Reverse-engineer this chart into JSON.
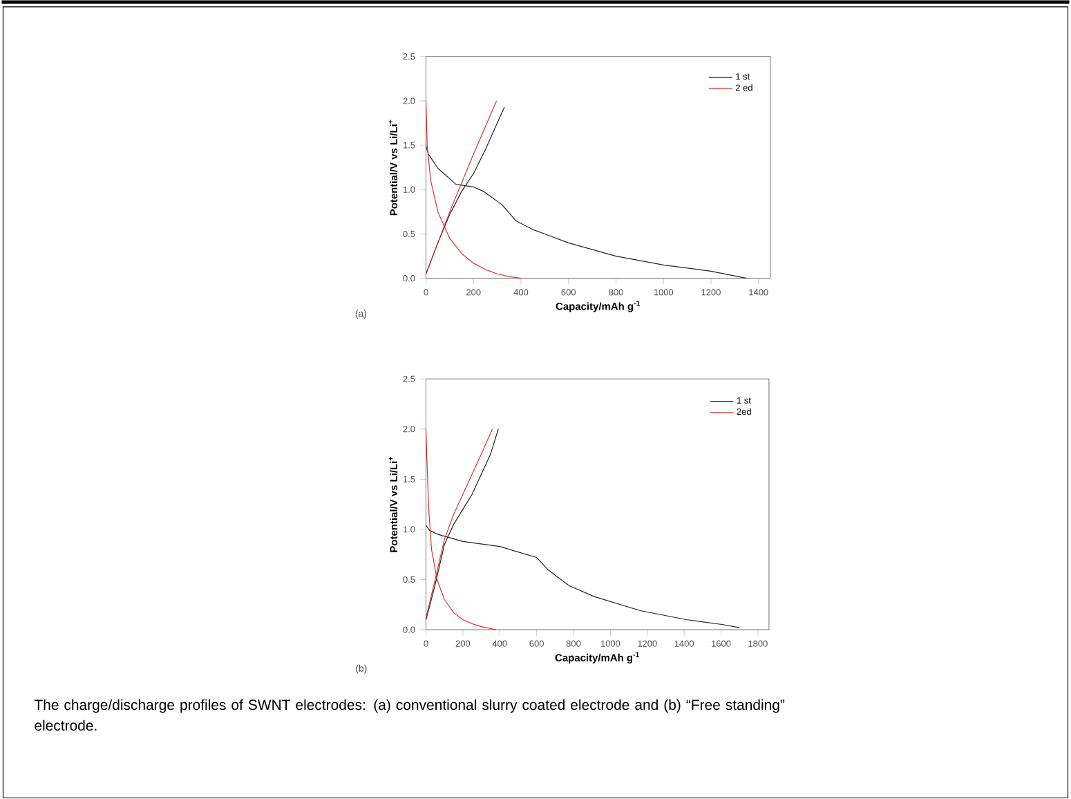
{
  "chart_data": [
    {
      "type": "line",
      "xlabel": "Capacity/mAh g$^{-1}$",
      "ylabel": "Potential/V vs Li/Li$^{+}$",
      "xlim": [
        0,
        1450
      ],
      "ylim": [
        0,
        2.5
      ],
      "xticks": [
        0,
        200,
        400,
        600,
        800,
        1000,
        1200,
        1400
      ],
      "yticks": [
        {
          "value": 0,
          "label": "0.0"
        },
        0.5,
        {
          "value": 1,
          "label": "1.0"
        },
        1.5,
        {
          "value": 2,
          "label": "2.0"
        },
        2.5
      ],
      "legend": "top right",
      "annotations": [
        "(a)"
      ],
      "series": [
        {
          "name": "1 st",
          "color": "#222222",
          "x": [
            0,
            10,
            50,
            126,
            200,
            242,
            320,
            378,
            450,
            500,
            600,
            800,
            1000,
            1200,
            1350
          ],
          "values": [
            1.49,
            1.4,
            1.24,
            1.06,
            1.03,
            0.98,
            0.83,
            0.65,
            0.55,
            0.5,
            0.4,
            0.25,
            0.15,
            0.08,
            0.0
          ]
        },
        {
          "color": "#222222",
          "x": [
            0,
            50,
            100,
            150,
            200,
            250,
            300,
            330
          ],
          "values": [
            0.05,
            0.4,
            0.72,
            0.98,
            1.18,
            1.45,
            1.75,
            1.93
          ]
        },
        {
          "name": "2 ed",
          "color": "#e03030",
          "x": [
            0,
            5,
            20,
            50,
            100,
            150,
            200,
            250,
            300,
            350,
            400
          ],
          "values": [
            2.0,
            1.5,
            1.1,
            0.75,
            0.45,
            0.28,
            0.17,
            0.1,
            0.05,
            0.02,
            0.0
          ]
        },
        {
          "color": "#e03030",
          "x": [
            0,
            100,
            200,
            297
          ],
          "values": [
            0.05,
            0.75,
            1.4,
            2.0
          ]
        }
      ]
    },
    {
      "type": "line",
      "xlabel": "Capacity/mAh g$^{-1}$",
      "ylabel": "Potential/V vs Li/Li$^{+}$",
      "xlim": [
        0,
        1860
      ],
      "ylim": [
        0,
        2.5
      ],
      "xticks": [
        0,
        200,
        400,
        600,
        800,
        1000,
        1200,
        1400,
        1600,
        1800
      ],
      "yticks": [
        {
          "value": 0,
          "label": "0.0"
        },
        0.5,
        {
          "value": 1,
          "label": "1.0"
        },
        1.5,
        {
          "value": 2,
          "label": "2.0"
        },
        2.5
      ],
      "legend": "top right",
      "annotations": [
        "(b)",
        "The charge/discharge profiles of SWNT electrodes: (a) conventional slurry coated electrode and (b) “Free standing” electrode."
      ],
      "series": [
        {
          "name": "1 st",
          "color": "#222222",
          "x": [
            0,
            20,
            65,
            200,
            400,
            600,
            660,
            775,
            912,
            1162,
            1412,
            1612,
            1700
          ],
          "values": [
            1.04,
            0.99,
            0.95,
            0.88,
            0.83,
            0.72,
            0.6,
            0.44,
            0.33,
            0.19,
            0.1,
            0.05,
            0.02
          ]
        },
        {
          "color": "#222222",
          "x": [
            0,
            50,
            100,
            150,
            200,
            250,
            300,
            350,
            392
          ],
          "values": [
            0.1,
            0.45,
            0.85,
            1.05,
            1.2,
            1.35,
            1.55,
            1.75,
            2.0
          ]
        },
        {
          "name": "2ed",
          "color": "#e03030",
          "x": [
            0,
            5,
            15,
            30,
            60,
            100,
            150,
            200,
            250,
            300,
            380
          ],
          "values": [
            2.0,
            1.7,
            1.2,
            0.8,
            0.5,
            0.3,
            0.17,
            0.1,
            0.06,
            0.03,
            0.0
          ]
        },
        {
          "color": "#e03030",
          "x": [
            0,
            50,
            100,
            150,
            200,
            250,
            300,
            360
          ],
          "values": [
            0.12,
            0.5,
            0.9,
            1.15,
            1.35,
            1.55,
            1.75,
            2.0
          ]
        }
      ]
    }
  ]
}
